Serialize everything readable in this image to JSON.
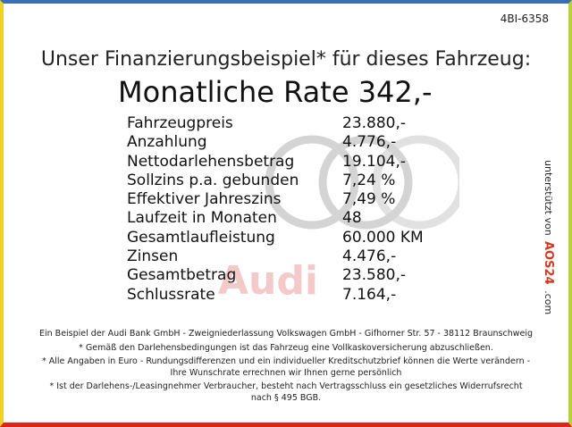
{
  "ref": "4BI-6358",
  "title": "Unser Finanzierungsbeispiel* für dieses Fahrzeug:",
  "rate": "Monatliche Rate 342,-",
  "watermark": "Audi",
  "table": {
    "rows": [
      [
        "Fahrzeugpreis",
        "23.880,-"
      ],
      [
        "Anzahlung",
        "4.776,-"
      ],
      [
        "Nettodarlehensbetrag",
        "19.104,-"
      ],
      [
        "Sollzins p.a. gebunden",
        "7,24 %"
      ],
      [
        "Effektiver Jahreszins",
        "7,49 %"
      ],
      [
        "Laufzeit in Monaten",
        "48"
      ],
      [
        "Gesamtlaufleistung",
        "60.000 KM"
      ],
      [
        "Zinsen",
        "4.476,-"
      ],
      [
        "Gesamtbetrag",
        "23.580,-"
      ],
      [
        "Schlussrate",
        "7.164,-"
      ]
    ]
  },
  "footnotes": [
    "Ein Beispiel der Audi Bank GmbH - Zweigniederlassung Volkswagen GmbH - Gifhorner Str. 57 - 38112 Braunschweig",
    "* Gemäß den Darlehensbedingungen ist das Fahrzeug eine Vollkaskoversicherung abzuschließen.",
    "* Alle Angaben in Euro - Rundungsdifferenzen und ein individueller Kreditschutzbrief können die Werte verändern - Ihre Wunschrate errechnen wir Ihnen gerne persönlich",
    "* Ist der Darlehens-/Leasingnehmer Verbraucher, besteht nach Vertragsschluss ein gesetzliches Widerrufsrecht nach § 495 BGB."
  ],
  "sidebar": {
    "text": "unterstützt von",
    "logo": "AOS24",
    "suffix": ".com"
  }
}
